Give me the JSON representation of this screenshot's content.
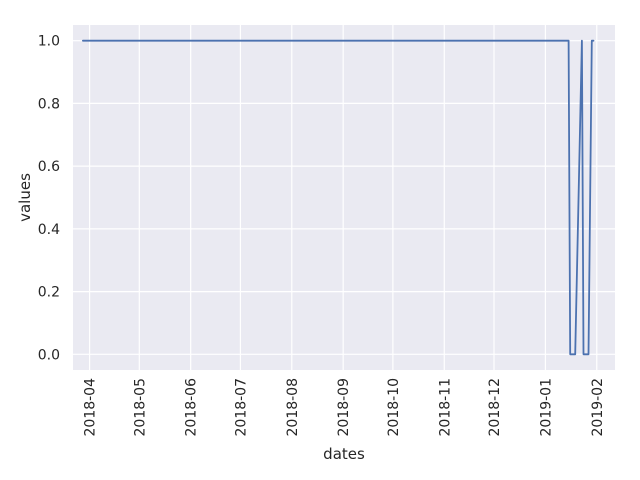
{
  "chart_data": {
    "type": "line",
    "title": "",
    "xlabel": "dates",
    "ylabel": "values",
    "x_scale": "date",
    "xlim": [
      "2018-03-22",
      "2019-02-12"
    ],
    "ylim": [
      -0.05,
      1.05
    ],
    "x_ticks": [
      "2018-04-01",
      "2018-05-01",
      "2018-06-01",
      "2018-07-01",
      "2018-08-01",
      "2018-09-01",
      "2018-10-01",
      "2018-11-01",
      "2018-12-01",
      "2019-01-01",
      "2019-02-01"
    ],
    "x_tick_labels": [
      "2018-04",
      "2018-05",
      "2018-06",
      "2018-07",
      "2018-08",
      "2018-09",
      "2018-10",
      "2018-11",
      "2018-12",
      "2019-01",
      "2019-02"
    ],
    "y_ticks": [
      0.0,
      0.2,
      0.4,
      0.6,
      0.8,
      1.0
    ],
    "y_tick_labels": [
      "0.0",
      "0.2",
      "0.4",
      "0.6",
      "0.8",
      "1.0"
    ],
    "grid": true,
    "background": "#eaeaf2",
    "series": [
      {
        "color": "#4c72b0",
        "x": [
          "2018-03-28",
          "2019-01-15",
          "2019-01-16",
          "2019-01-19",
          "2019-01-23",
          "2019-01-24",
          "2019-01-27",
          "2019-01-29",
          "2019-01-30"
        ],
        "y": [
          1,
          1,
          0,
          0,
          1,
          0,
          0,
          1,
          1
        ]
      }
    ]
  }
}
